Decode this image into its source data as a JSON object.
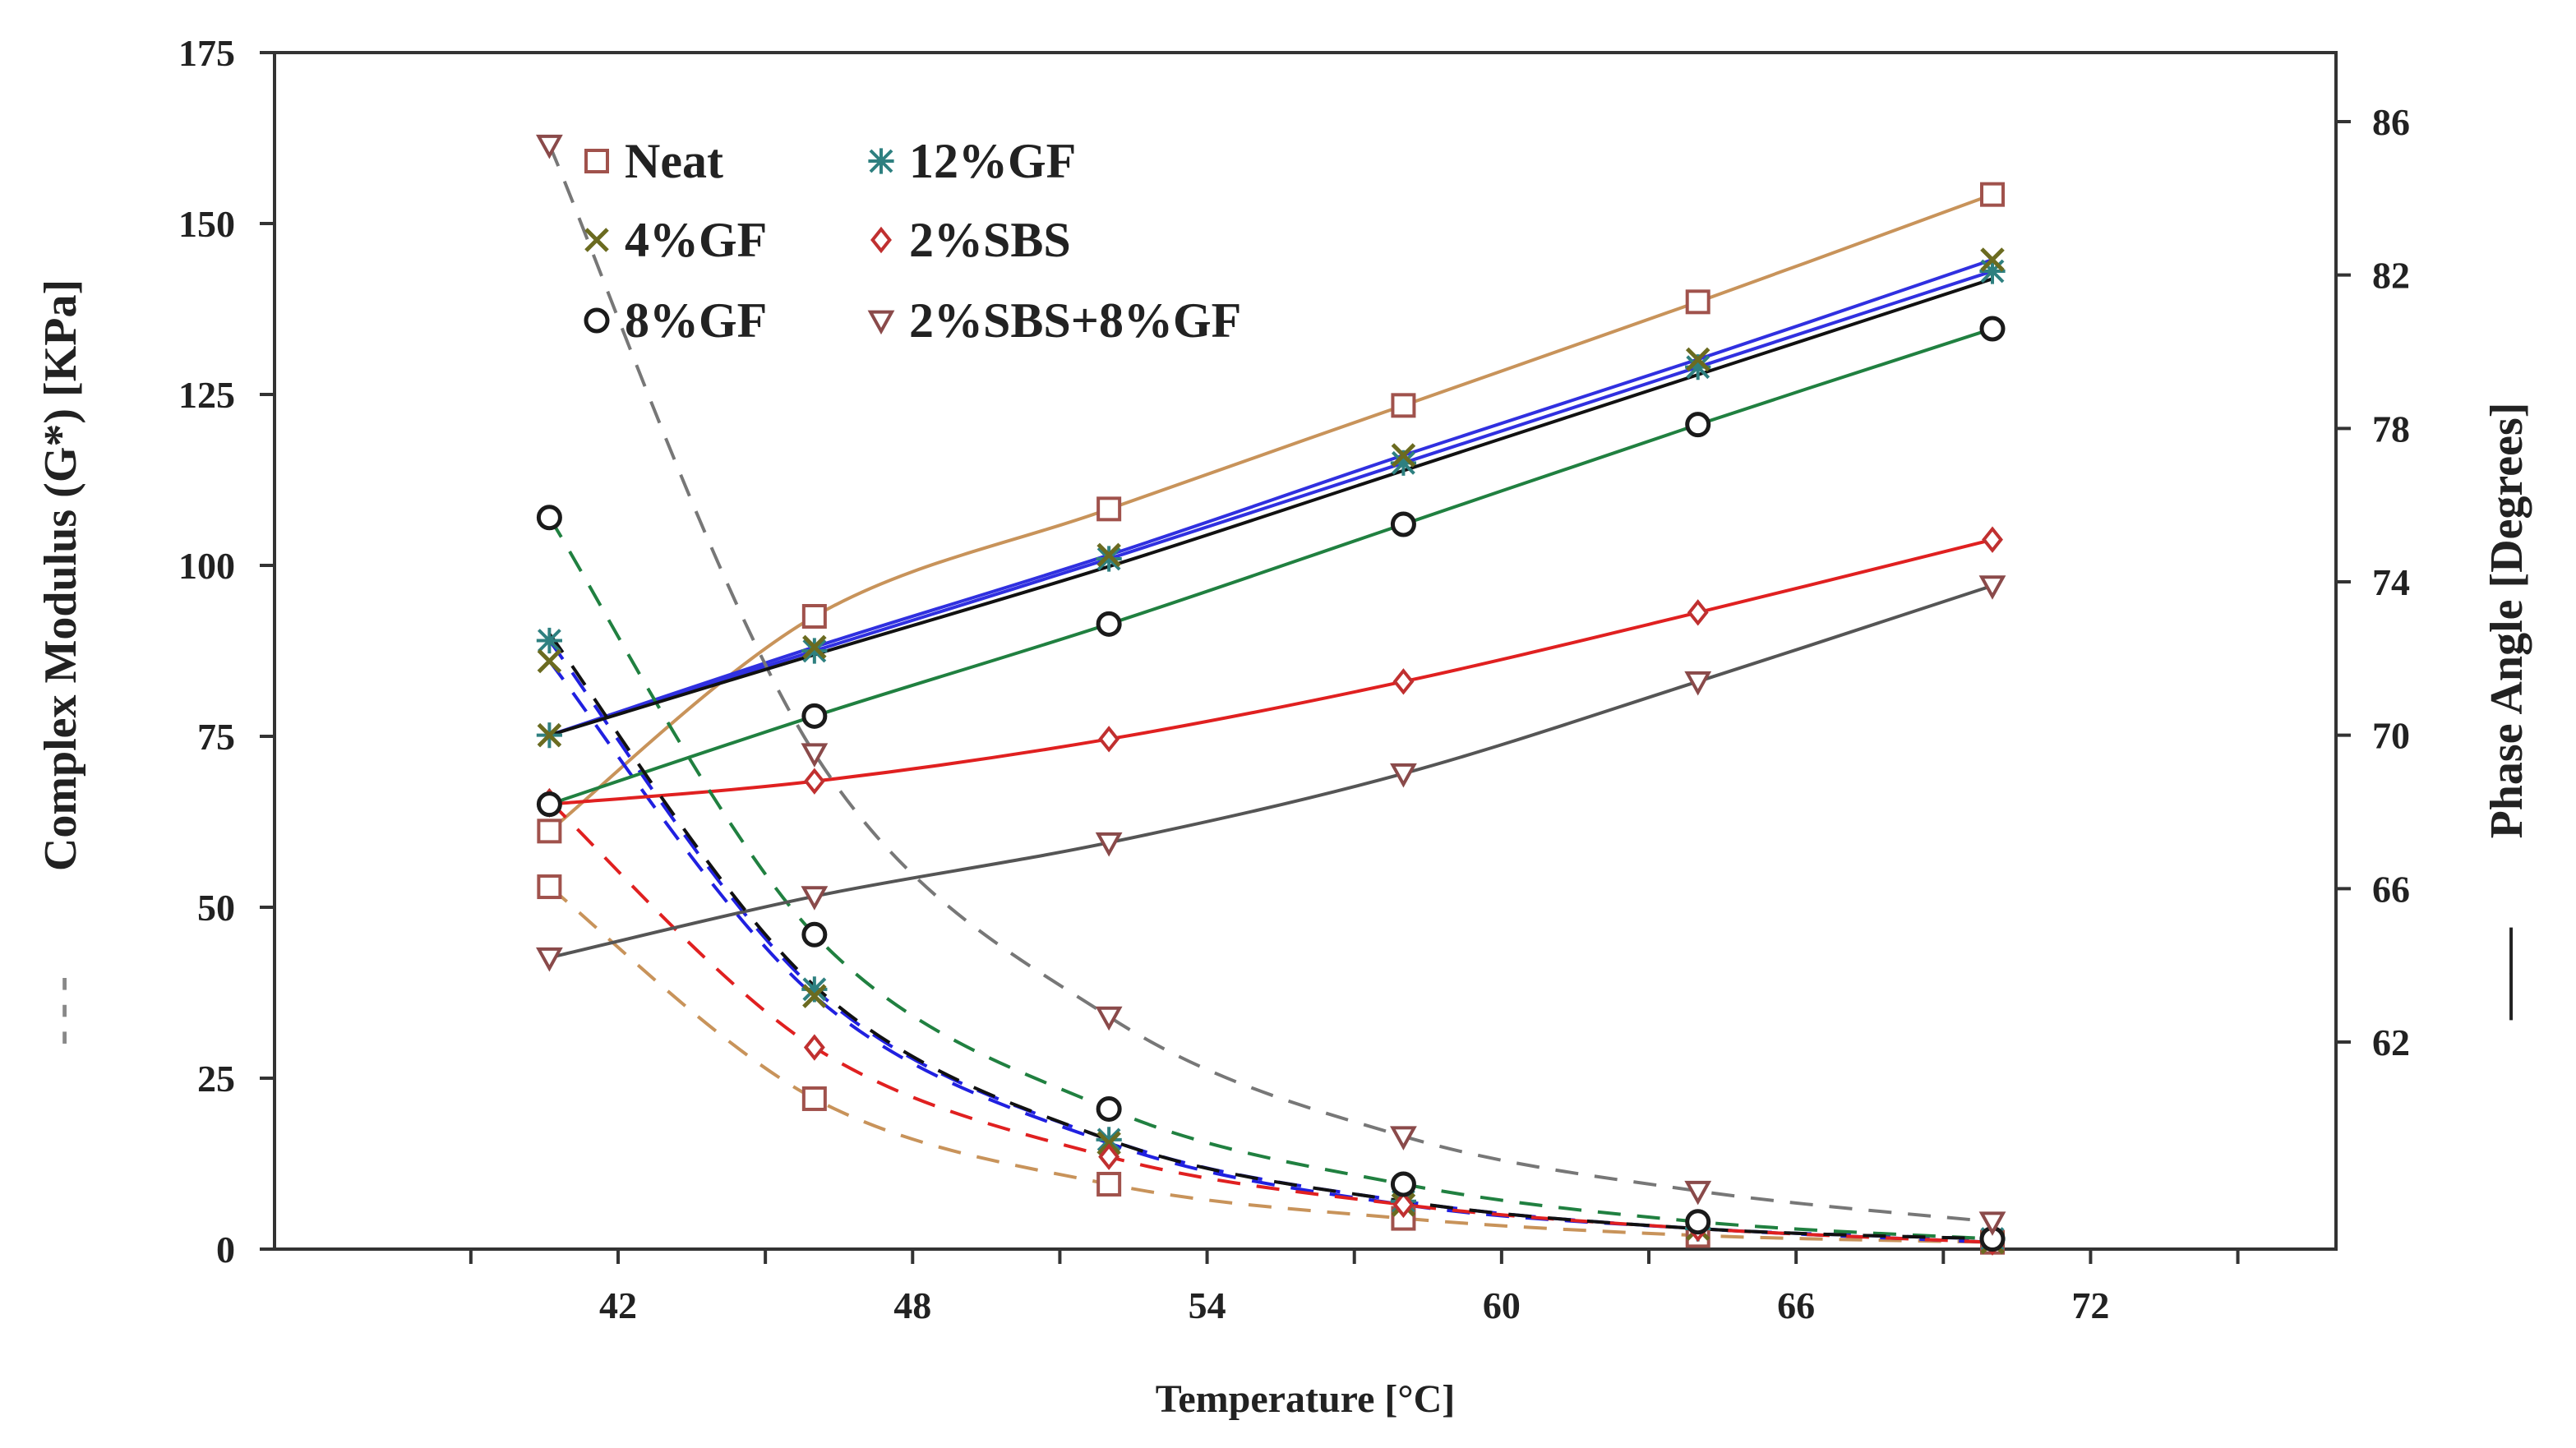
{
  "chart_data": {
    "type": "line",
    "xlabel": "Temperature [°C]",
    "ylabel": "Complex Modulus (G*) [KPa]",
    "ylabel_prefix": "- - -",
    "y2label": "Phase Angle [Degrees]",
    "y2label_prefix": "——",
    "x": [
      40.6,
      46.0,
      52.0,
      58.0,
      64.0,
      70.0
    ],
    "xlim": [
      35,
      77
    ],
    "ylim": [
      0,
      175
    ],
    "y2lim": [
      56.6,
      87.8
    ],
    "x_ticks": [
      42,
      48,
      54,
      60,
      66,
      72
    ],
    "y_ticks": [
      0,
      25,
      50,
      75,
      100,
      125,
      150,
      175
    ],
    "y2_ticks": [
      62,
      66,
      70,
      74,
      78,
      82,
      86
    ],
    "legend_position": "top-left",
    "series": [
      {
        "name": "Neat",
        "marker": "square",
        "phase_color": "#c8935a",
        "modulus_color": "#c8935a",
        "marker_color": "#a0524c",
        "phase_angle": [
          67.5,
          73.1,
          75.9,
          78.6,
          81.3,
          84.1
        ],
        "modulus": [
          53,
          22,
          9.5,
          4.5,
          2,
          1
        ]
      },
      {
        "name": "12%GF",
        "marker": "asterisk",
        "phase_color": "#3030e0",
        "modulus_color": "#2020e0",
        "marker_color": "#2e8080",
        "phase_angle": [
          70.0,
          72.2,
          74.6,
          77.1,
          79.6,
          82.1
        ],
        "modulus": [
          89,
          38,
          16,
          7,
          3,
          1.5
        ]
      },
      {
        "name": "4%GF",
        "marker": "x",
        "phase_color": "#3030e0",
        "modulus_color": "#2020e0",
        "marker_color": "#6b6b20",
        "phase_angle": [
          70.0,
          72.3,
          74.7,
          77.3,
          79.8,
          82.4
        ],
        "modulus": [
          86,
          37,
          15.5,
          6.5,
          3,
          1
        ]
      },
      {
        "name": "2%SBS",
        "marker": "diamond",
        "phase_color": "#e02020",
        "modulus_color": "#e02020",
        "marker_color": "#c03030",
        "phase_angle": [
          68.2,
          68.8,
          69.9,
          71.4,
          73.2,
          75.1
        ],
        "modulus": [
          65.5,
          29.5,
          13.5,
          6.5,
          3,
          1
        ]
      },
      {
        "name": "8%GF",
        "marker": "circle",
        "phase_color": "#208040",
        "modulus_color": "#208040",
        "marker_color": "#1a1a1a",
        "phase_angle": [
          68.2,
          70.5,
          72.9,
          75.5,
          78.1,
          80.6
        ],
        "modulus": [
          107,
          46,
          20.5,
          9.5,
          4,
          1.5
        ]
      },
      {
        "name": "2%SBS+8%GF",
        "marker": "triangle-down",
        "phase_color": "#555555",
        "modulus_color": "#777777",
        "marker_color": "#8a4a4a",
        "phase_angle": [
          64.2,
          65.8,
          67.2,
          69.0,
          71.4,
          73.9
        ],
        "modulus": [
          161.5,
          72.5,
          34,
          16.5,
          8.5,
          4
        ]
      },
      {
        "name": "",
        "marker": "none",
        "phase_color": "#111111",
        "modulus_color": "#111111",
        "marker_color": "#111111",
        "phase_angle": [
          70.0,
          72.1,
          74.4,
          76.9,
          79.4,
          81.9
        ],
        "modulus": [
          90,
          38.5,
          16,
          7,
          3,
          1.5
        ]
      }
    ]
  }
}
